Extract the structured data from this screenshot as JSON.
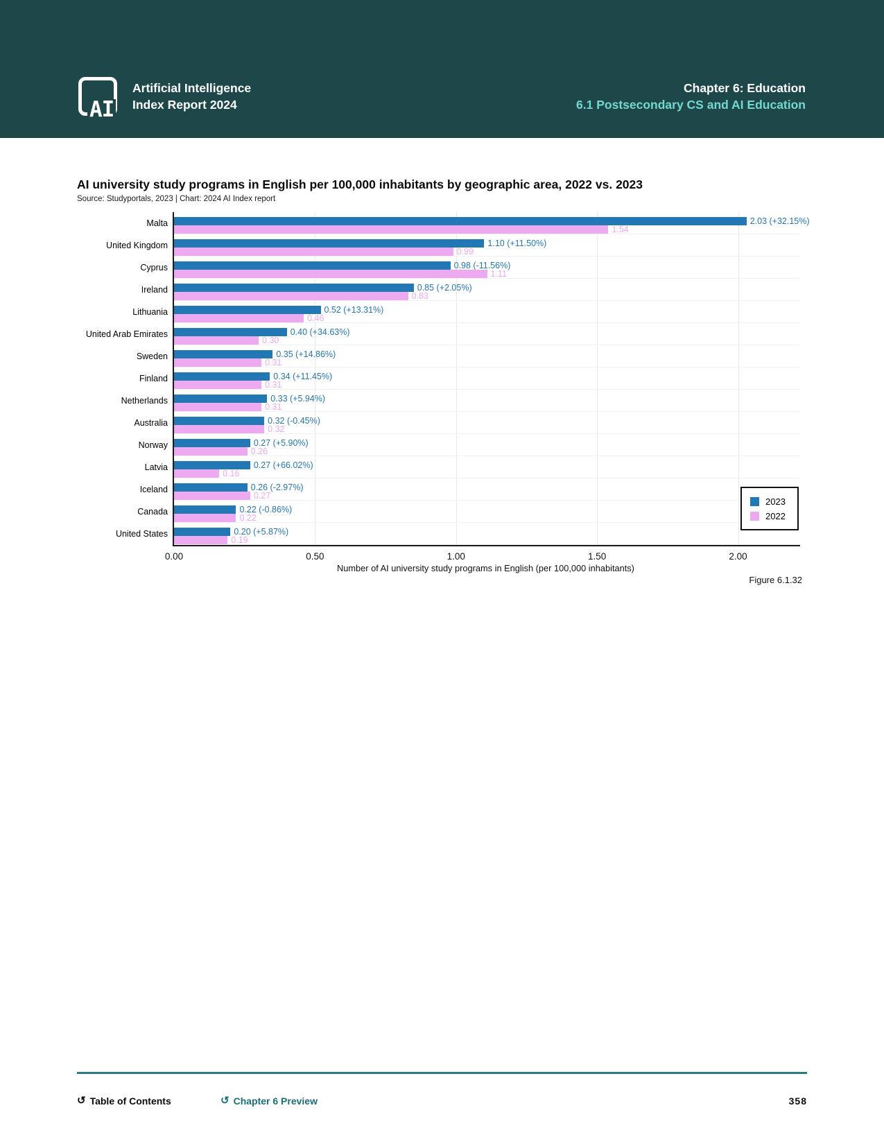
{
  "header": {
    "logo_text": "AI",
    "brand_line1": "Artificial Intelligence",
    "brand_line2": "Index Report 2024",
    "chapter": "Chapter 6: Education",
    "section": "6.1 Postsecondary CS and AI Education"
  },
  "chart_data": {
    "type": "bar",
    "orientation": "horizontal",
    "title": "AI university study programs in English per 100,000 inhabitants by geographic area, 2022 vs. 2023",
    "source": "Source: Studyportals, 2023 | Chart: 2024 AI Index report",
    "xlabel": "Number of AI university study programs in English (per 100,000 inhabitants)",
    "figure_label": "Figure 6.1.32",
    "xlim": [
      0,
      2.22
    ],
    "xticks": [
      0,
      0.5,
      1.0,
      1.5,
      2.0
    ],
    "xtick_labels": [
      "0.00",
      "0.50",
      "1.00",
      "1.50",
      "2.00"
    ],
    "grid": true,
    "legend_position": "lower right",
    "categories": [
      "Malta",
      "United Kingdom",
      "Cyprus",
      "Ireland",
      "Lithuania",
      "United Arab Emirates",
      "Sweden",
      "Finland",
      "Netherlands",
      "Australia",
      "Norway",
      "Latvia",
      "Iceland",
      "Canada",
      "United States"
    ],
    "series": [
      {
        "name": "2023",
        "color": "#2277b5",
        "values": [
          2.03,
          1.1,
          0.98,
          0.85,
          0.52,
          0.4,
          0.35,
          0.34,
          0.33,
          0.32,
          0.27,
          0.27,
          0.26,
          0.22,
          0.2
        ],
        "data_labels": [
          "2.03 (+32.15%)",
          "1.10 (+11.50%)",
          "0.98 (-11.56%)",
          "0.85 (+2.05%)",
          "0.52 (+13.31%)",
          "0.40 (+34.63%)",
          "0.35 (+14.86%)",
          "0.34 (+11.45%)",
          "0.33 (+5.94%)",
          "0.32 (-0.45%)",
          "0.27 (+5.90%)",
          "0.27 (+66.02%)",
          "0.26 (-2.97%)",
          "0.22 (-0.86%)",
          "0.20 (+5.87%)"
        ]
      },
      {
        "name": "2022",
        "color": "#edaaf1",
        "values": [
          1.54,
          0.99,
          1.11,
          0.83,
          0.46,
          0.3,
          0.31,
          0.31,
          0.31,
          0.32,
          0.26,
          0.16,
          0.27,
          0.22,
          0.19
        ],
        "data_labels": [
          "1.54",
          "0.99",
          "1.11",
          "0.83",
          "0.46",
          "0.30",
          "0.31",
          "0.31",
          "0.31",
          "0.32",
          "0.26",
          "0.16",
          "0.27",
          "0.22",
          "0.19"
        ]
      }
    ]
  },
  "footer": {
    "toc_label": "Table of Contents",
    "preview_label": "Chapter 6 Preview",
    "page_number": "358",
    "return_icon": "↺"
  }
}
